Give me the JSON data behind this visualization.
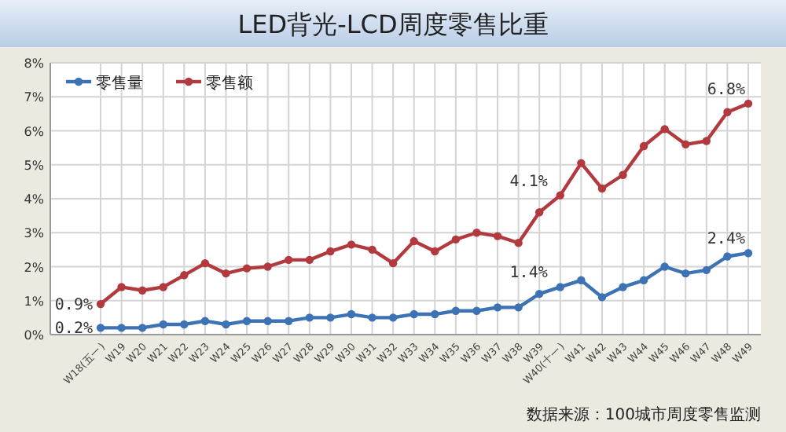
{
  "chart_data": {
    "type": "line",
    "title": "LED背光-LCD周度零售比重",
    "categories": [
      "W18(五一)",
      "W19",
      "W20",
      "W21",
      "W22",
      "W23",
      "W24",
      "W25",
      "W26",
      "W27",
      "W28",
      "W29",
      "W30",
      "W31",
      "W32",
      "W33",
      "W34",
      "W35",
      "W36",
      "W37",
      "W38",
      "W39",
      "W40(十一)",
      "W41",
      "W42",
      "W43",
      "W44",
      "W45",
      "W46",
      "W47",
      "W48",
      "W49"
    ],
    "series": [
      {
        "name": "零售量",
        "color": "#3d72b4",
        "values": [
          0.2,
          0.2,
          0.2,
          0.3,
          0.3,
          0.4,
          0.3,
          0.4,
          0.4,
          0.4,
          0.5,
          0.5,
          0.6,
          0.5,
          0.5,
          0.6,
          0.6,
          0.7,
          0.7,
          0.8,
          0.8,
          1.2,
          1.4,
          1.6,
          1.1,
          1.4,
          1.6,
          2.0,
          1.8,
          1.9,
          2.3,
          2.4
        ],
        "value_labels": [
          "0.2%",
          null,
          null,
          null,
          null,
          null,
          null,
          null,
          null,
          null,
          null,
          null,
          null,
          null,
          null,
          null,
          null,
          null,
          null,
          null,
          null,
          null,
          "1.4%",
          null,
          null,
          null,
          null,
          null,
          null,
          null,
          null,
          "2.4%"
        ]
      },
      {
        "name": "零售额",
        "color": "#b23a3e",
        "values": [
          0.9,
          1.4,
          1.3,
          1.4,
          1.75,
          2.1,
          1.8,
          1.95,
          2.0,
          2.2,
          2.2,
          2.45,
          2.65,
          2.5,
          2.1,
          2.75,
          2.45,
          2.8,
          3.0,
          2.9,
          2.7,
          3.6,
          4.1,
          5.05,
          4.3,
          4.7,
          5.55,
          6.05,
          5.6,
          5.7,
          6.55,
          6.8
        ],
        "value_labels": [
          "0.9%",
          null,
          null,
          null,
          null,
          null,
          null,
          null,
          null,
          null,
          null,
          null,
          null,
          null,
          null,
          null,
          null,
          null,
          null,
          null,
          null,
          null,
          "4.1%",
          null,
          null,
          null,
          null,
          null,
          null,
          null,
          null,
          "6.8%"
        ]
      }
    ],
    "ylim": [
      0,
      8
    ],
    "yticks": [
      {
        "value": 0,
        "label": "0%"
      },
      {
        "value": 1,
        "label": "1%"
      },
      {
        "value": 2,
        "label": "2%"
      },
      {
        "value": 3,
        "label": "3%"
      },
      {
        "value": 4,
        "label": "4%"
      },
      {
        "value": 5,
        "label": "5%"
      },
      {
        "value": 6,
        "label": "6%"
      },
      {
        "value": 7,
        "label": "7%"
      },
      {
        "value": 8,
        "label": "8%"
      }
    ],
    "grid": true,
    "legend": "top left",
    "marker": "circle",
    "line_style": "solid",
    "annotations": [
      "数据来源：100城市周度零售监测"
    ]
  }
}
